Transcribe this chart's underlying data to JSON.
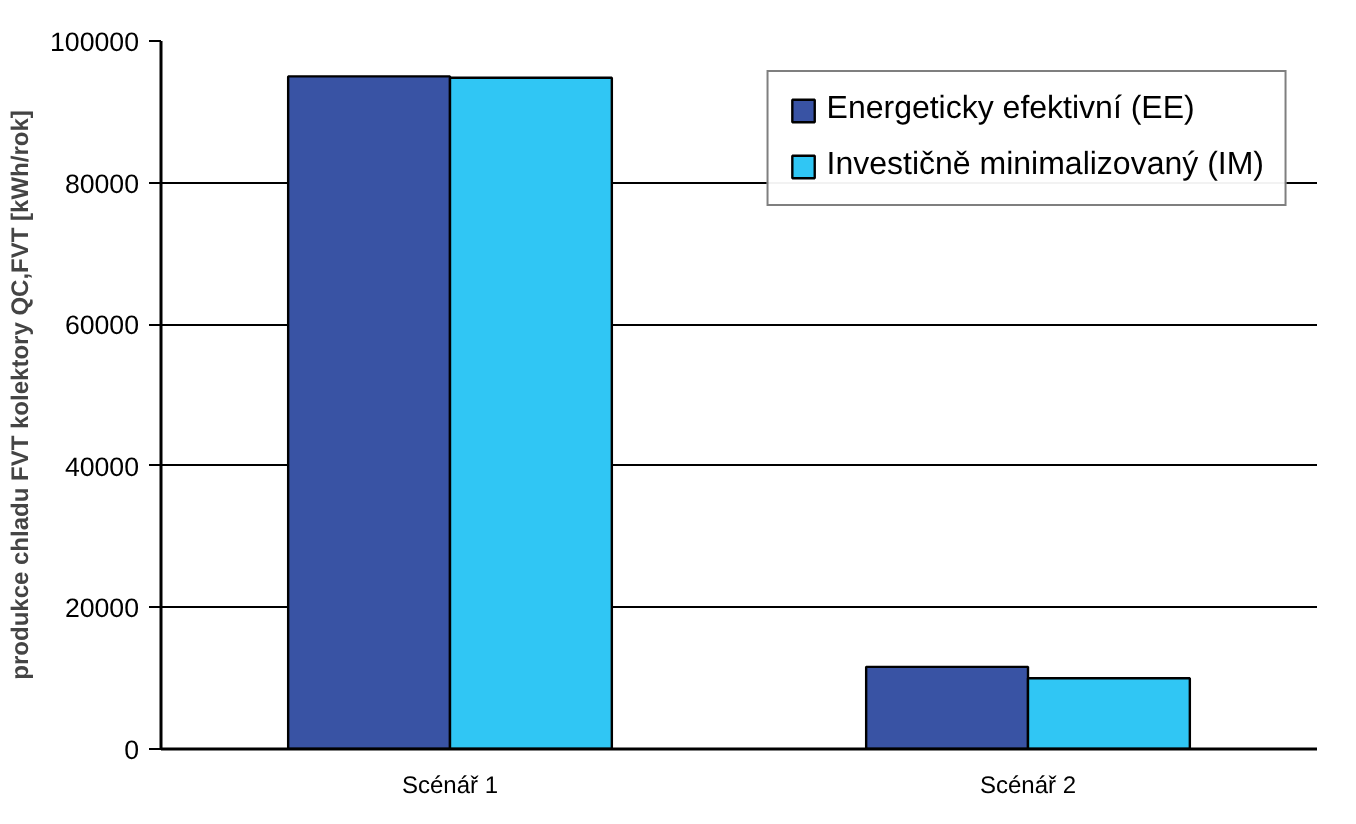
{
  "chart_data": {
    "type": "bar",
    "ylabel": "produkce chladu FVT kolektory QC,FVT [kWh/rok]",
    "categories": [
      "Scénář 1",
      "Scénář 2"
    ],
    "series": [
      {
        "name": "Energeticky efektivní (EE)",
        "color": "#3953a4",
        "values": [
          95000,
          11600
        ]
      },
      {
        "name": "Investičně minimalizovaný (IM)",
        "color": "#30c6f4",
        "values": [
          94800,
          10000
        ]
      }
    ],
    "ylim": [
      0,
      100000
    ],
    "yticks": [
      0,
      20000,
      40000,
      60000,
      80000,
      100000
    ],
    "grid": "y",
    "legend": "top right"
  }
}
